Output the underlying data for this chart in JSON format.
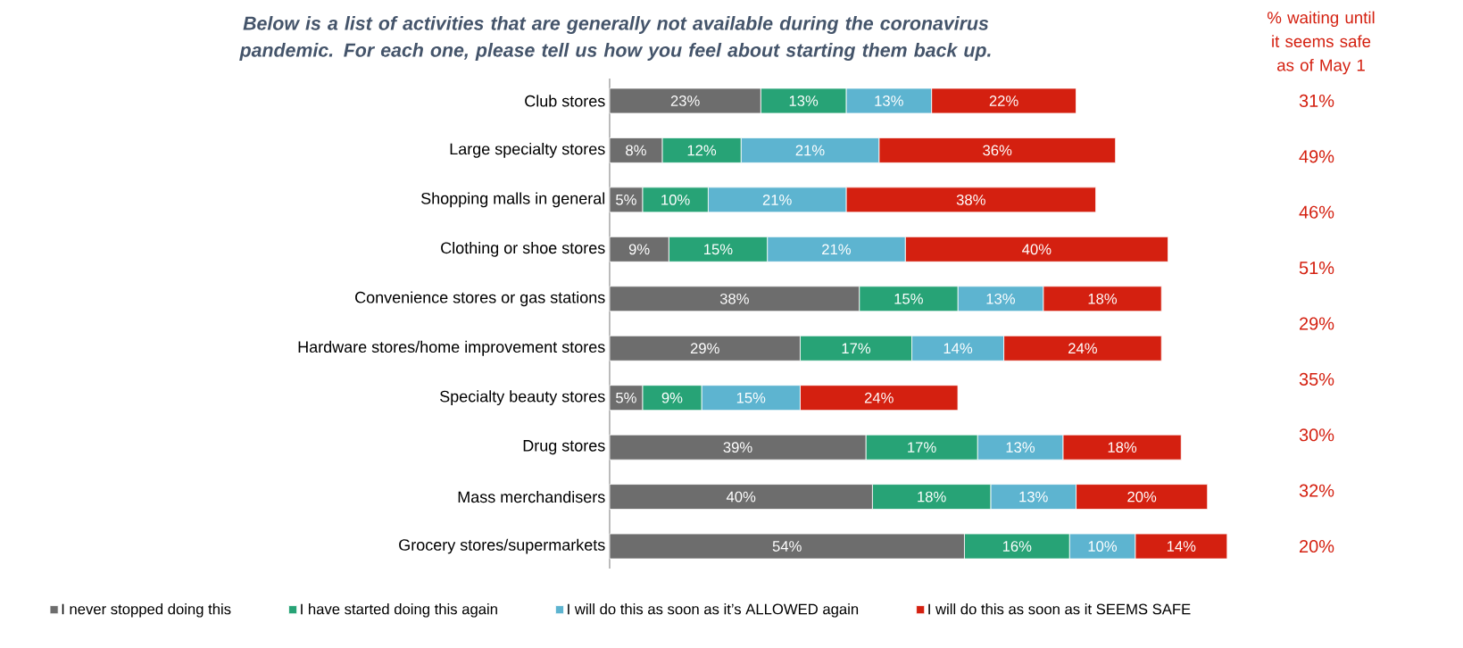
{
  "chart_data": {
    "type": "bar",
    "orientation": "horizontal",
    "stacked": true,
    "legend": "bottom",
    "title": "*Below is a list of activities that are generally not available during the coronavirus pandemic. For each one, please tell us how you feel about starting them back up.*",
    "categories": [
      "Club stores",
      "Large specialty stores",
      "Shopping malls in general",
      "Clothing or shoe stores",
      "Convenience stores or gas stations",
      "Hardware stores/home improvement stores",
      "Specialty beauty stores",
      "Drug stores",
      "Mass merchandisers",
      "Grocery stores/supermarkets"
    ],
    "series": [
      {
        "name": "I never stopped doing this",
        "color": "#6d6d6d",
        "values": [
          23,
          8,
          5,
          9,
          38,
          29,
          5,
          39,
          40,
          54
        ],
        "value_labels": [
          "23%",
          "8%",
          "5%",
          "9%",
          "38%",
          "29%",
          "5%",
          "39%",
          "40%",
          "54%"
        ]
      },
      {
        "name": "I have started doing this again",
        "color": "#27a376",
        "values": [
          13,
          12,
          10,
          15,
          15,
          17,
          9,
          17,
          18,
          16
        ],
        "value_labels": [
          "13%",
          "12%",
          "10%",
          "15%",
          "15%",
          "17%",
          "9%",
          "17%",
          "18%",
          "16%"
        ]
      },
      {
        "name": "I will do this as soon as it’s ALLOWED again",
        "color": "#5db4d0",
        "values": [
          13,
          21,
          21,
          21,
          13,
          14,
          15,
          13,
          13,
          10
        ],
        "value_labels": [
          "13%",
          "21%",
          "21%",
          "21%",
          "13%",
          "14%",
          "15%",
          "13%",
          "13%",
          "10%"
        ]
      },
      {
        "name": "I will do this as soon as it SEEMS SAFE",
        "color": "#d42010",
        "values": [
          22,
          36,
          38,
          40,
          18,
          24,
          24,
          18,
          20,
          14
        ],
        "value_labels": [
          "22%",
          "36%",
          "38%",
          "40%",
          "18%",
          "24%",
          "24%",
          "18%",
          "20%",
          "14%"
        ]
      }
    ],
    "annotations": [
      "% waiting until it seems safe as of May 1",
      "31%",
      "49%",
      "46%",
      "51%",
      "29%",
      "35%",
      "30%",
      "32%",
      "20%"
    ]
  }
}
